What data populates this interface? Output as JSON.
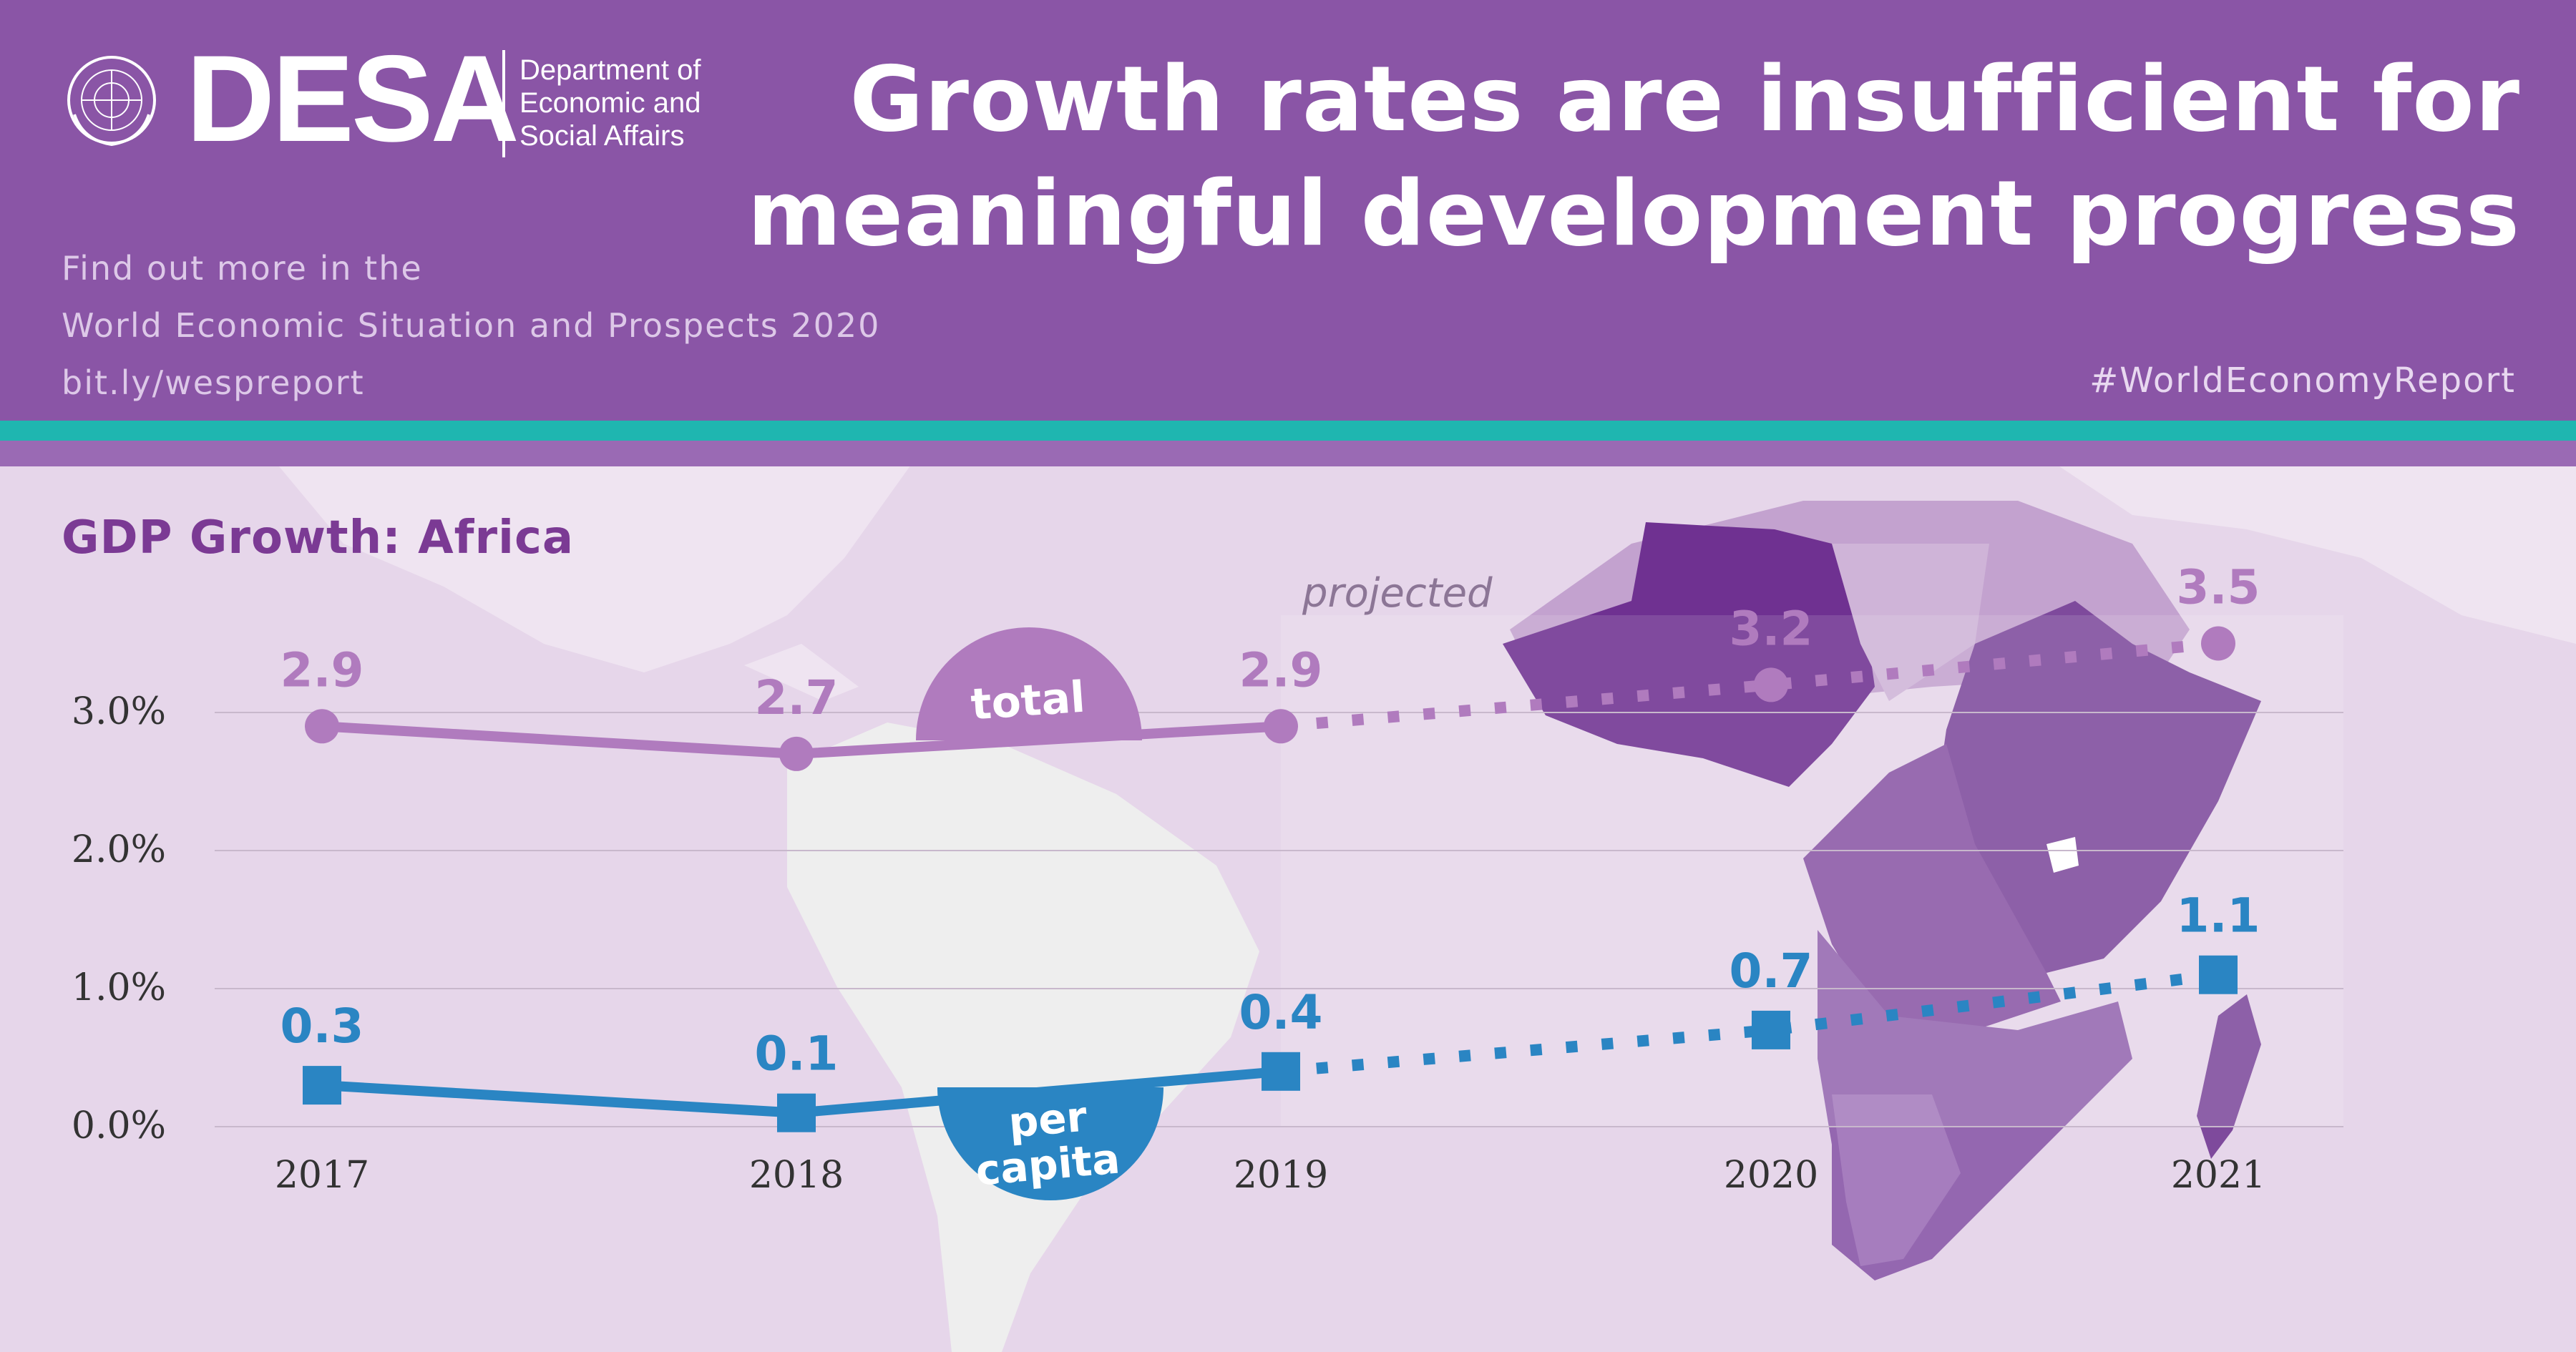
{
  "header": {
    "org_short": "DESA",
    "org_full_lines": [
      "Department of",
      "Economic and",
      "Social Affairs"
    ],
    "more_info_lines": [
      "Find out more in the",
      "World Economic Situation and Prospects 2020",
      "bit.ly/wespreport"
    ],
    "headline_lines": [
      "Growth rates are insufficient for",
      "meaningful development progress"
    ],
    "hashtag": "#WorldEconomyReport"
  },
  "colors": {
    "header_bg": "#8a55a6",
    "band": "#1fb6b0",
    "total_series": "#b07bbe",
    "per_capita_series": "#2a85c3",
    "title": "#7b3a94"
  },
  "chart_data": {
    "type": "line",
    "title": "GDP Growth: Africa",
    "x": [
      "2017",
      "2018",
      "2019",
      "2020",
      "2021"
    ],
    "ylim": [
      0.0,
      3.0
    ],
    "yticks": [
      "0.0%",
      "1.0%",
      "2.0%",
      "3.0%"
    ],
    "projected_label": "projected",
    "projected_from": "2019",
    "grid": true,
    "series": [
      {
        "name": "total",
        "values": [
          2.9,
          2.7,
          2.9,
          3.2,
          3.5
        ],
        "labels": [
          "2.9",
          "2.7",
          "2.9",
          "3.2",
          "3.5"
        ],
        "marker": "circle"
      },
      {
        "name": "per capita",
        "values": [
          0.3,
          0.1,
          0.4,
          0.7,
          1.1
        ],
        "labels": [
          "0.3",
          "0.1",
          "0.4",
          "0.7",
          "1.1"
        ],
        "marker": "square"
      }
    ]
  }
}
